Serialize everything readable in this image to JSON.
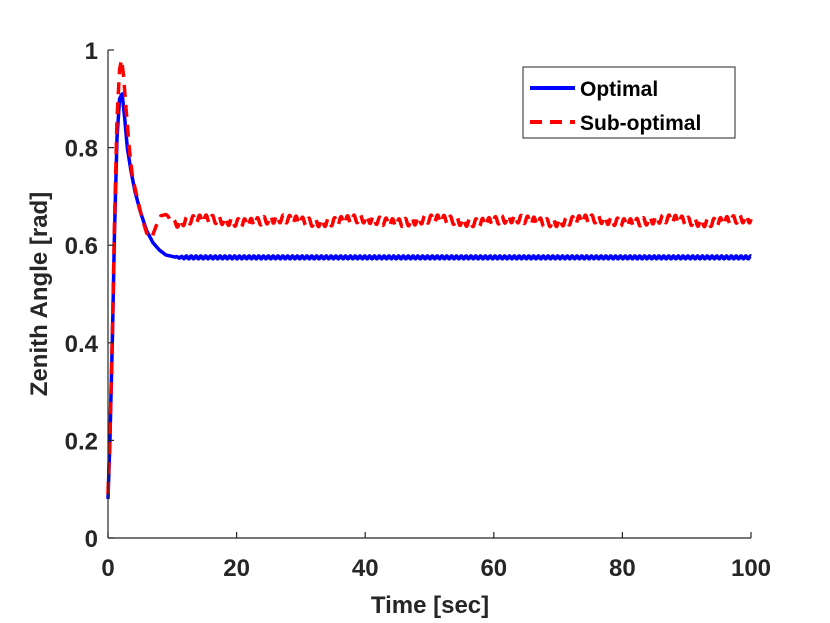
{
  "chart_data": {
    "type": "line",
    "title": "",
    "xlabel": "Time [sec]",
    "ylabel": "Zenith Angle [rad]",
    "xlim": [
      0,
      100
    ],
    "ylim": [
      0,
      1
    ],
    "xticks": [
      0,
      20,
      40,
      60,
      80,
      100
    ],
    "yticks": [
      0,
      0.2,
      0.4,
      0.6,
      0.8,
      1
    ],
    "xtick_labels": [
      "0",
      "20",
      "40",
      "60",
      "80",
      "100"
    ],
    "ytick_labels": [
      "0",
      "0.2",
      "0.4",
      "0.6",
      "0.8",
      "1"
    ],
    "grid": false,
    "legend_position": "top-right",
    "series": [
      {
        "name": "Optimal",
        "color": "#0000ff",
        "style": "solid",
        "x": [
          0,
          0.3,
          0.7,
          1.0,
          1.4,
          1.8,
          2.2,
          2.6,
          3.0,
          3.6,
          4.2,
          5.0,
          6.0,
          7.0,
          8.0,
          9.0,
          10.0,
          11.0,
          12.0,
          100.0
        ],
        "y": [
          0.08,
          0.2,
          0.42,
          0.62,
          0.82,
          0.9,
          0.91,
          0.86,
          0.8,
          0.75,
          0.71,
          0.67,
          0.63,
          0.605,
          0.59,
          0.58,
          0.577,
          0.575,
          0.575,
          0.575
        ],
        "oscillation": {
          "start": 10,
          "amplitude": 0.003,
          "period": 0.75
        }
      },
      {
        "name": "Sub-optimal",
        "color": "#ff0000",
        "style": "dashed",
        "x": [
          0,
          0.3,
          0.7,
          1.0,
          1.4,
          1.8,
          2.1,
          2.4,
          2.8,
          3.3,
          3.8,
          4.5,
          5.2,
          6.0,
          6.8,
          7.5,
          8.2,
          9.0,
          10.0,
          11.0,
          12.0,
          100.0
        ],
        "y": [
          0.09,
          0.21,
          0.43,
          0.64,
          0.86,
          0.96,
          0.98,
          0.95,
          0.88,
          0.8,
          0.74,
          0.7,
          0.66,
          0.625,
          0.615,
          0.64,
          0.66,
          0.663,
          0.65,
          0.645,
          0.65,
          0.65
        ],
        "oscillation": {
          "start": 9,
          "amplitude": 0.008,
          "period": 1.0,
          "slow_amplitude": 0.004,
          "slow_period": 12.0
        }
      }
    ]
  }
}
